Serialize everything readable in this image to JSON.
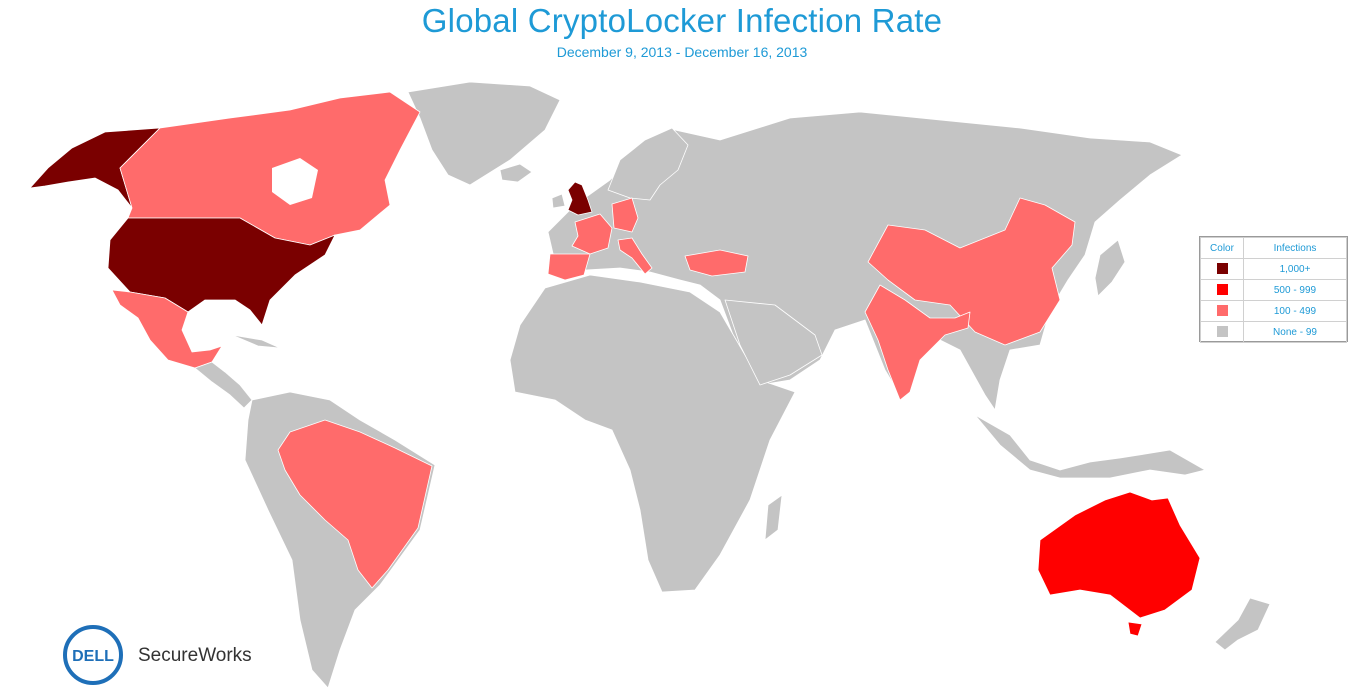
{
  "title": "Global CryptoLocker Infection Rate",
  "subtitle": "December 9, 2013 - December 16, 2013",
  "colors": {
    "high": "#7a0000",
    "mid": "#ff0000",
    "low": "#ff6b6b",
    "none": "#c4c4c4",
    "accent": "#1e9ad6"
  },
  "legend": {
    "col_color": "Color",
    "col_infections": "Infections",
    "rows": [
      {
        "label": "1,000+",
        "color": "#7a0000"
      },
      {
        "label": "500 - 999",
        "color": "#ff0000"
      },
      {
        "label": "100 - 499",
        "color": "#ff6b6b"
      },
      {
        "label": "None - 99",
        "color": "#c4c4c4"
      }
    ]
  },
  "countries": {
    "1,000+": [
      "United States",
      "Alaska",
      "United Kingdom"
    ],
    "500 - 999": [
      "Australia"
    ],
    "100 - 499": [
      "Canada",
      "Mexico",
      "Brazil",
      "France",
      "Spain",
      "Germany",
      "Italy",
      "Turkey",
      "India",
      "China"
    ]
  },
  "brand": {
    "logo_text": "DELL",
    "name": "SecureWorks"
  }
}
